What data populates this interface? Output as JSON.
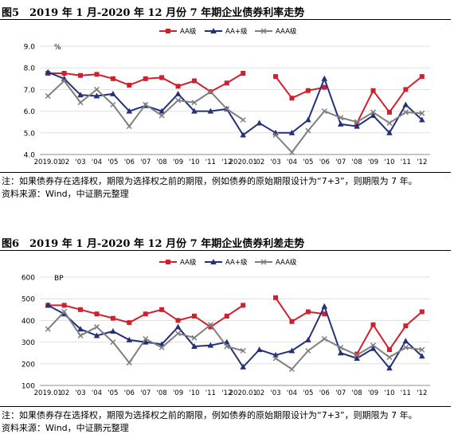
{
  "figure1": {
    "title": "图5　2019 年 1 月-2020 年 12 月份 7 年期企业债券利率走势",
    "note": "注：如果债券存在选择权，期限为选择权之前的期限，例如债券的原始期限设计为“7+3”，则期限为 7 年。",
    "source": "资料来源：Wind，中证鹏元整理"
  },
  "figure2": {
    "title": "图6　2019 年 1 月-2020 年 12 月份 7 年期企业债券利差走势",
    "note": "注：如果债券存在选择权，期限为选择权之前的期限，例如债券的原始期限设计为“7+3”，则期限为 7 年。",
    "source": "资料来源：Wind，中证鹏元整理"
  },
  "chart_data": [
    {
      "type": "line",
      "unit": "%",
      "categories": [
        "2019.01",
        "02",
        "03",
        "04",
        "05",
        "06",
        "07",
        "08",
        "09",
        "10",
        "11",
        "12",
        "2020.01",
        "02",
        "03",
        "04",
        "05",
        "06",
        "07",
        "08",
        "09",
        "10",
        "11",
        "12"
      ],
      "ylim": [
        4.0,
        9.0
      ],
      "yticks": [
        "4.0",
        "5.0",
        "6.0",
        "7.0",
        "8.0",
        "9.0"
      ],
      "grid": true,
      "legend_position": "top",
      "series": [
        {
          "name": "AA级",
          "color": "#d0202e",
          "marker": "square",
          "values": [
            7.75,
            7.75,
            7.65,
            7.7,
            7.5,
            7.2,
            7.5,
            7.55,
            7.15,
            7.4,
            6.9,
            7.3,
            7.75,
            null,
            7.6,
            6.6,
            6.95,
            7.1,
            null,
            5.45,
            6.95,
            5.95,
            7.0,
            7.6
          ]
        },
        {
          "name": "AA+级",
          "color": "#24307a",
          "marker": "triangle",
          "values": [
            7.8,
            7.5,
            6.75,
            6.7,
            6.8,
            6.0,
            6.25,
            6.0,
            6.8,
            6.0,
            6.0,
            6.1,
            4.9,
            5.45,
            5.0,
            5.0,
            5.6,
            7.5,
            5.4,
            5.3,
            5.8,
            5.0,
            6.3,
            5.6
          ]
        },
        {
          "name": "AAA级",
          "color": "#7f7f7f",
          "marker": "x",
          "values": [
            6.7,
            7.4,
            6.4,
            7.0,
            6.3,
            5.3,
            6.3,
            5.8,
            6.5,
            6.4,
            6.9,
            6.1,
            5.6,
            null,
            4.9,
            4.1,
            5.1,
            6.0,
            5.7,
            5.5,
            5.95,
            5.45,
            5.95,
            5.9
          ]
        }
      ]
    },
    {
      "type": "line",
      "unit": "BP",
      "categories": [
        "2019.01",
        "02",
        "03",
        "04",
        "05",
        "06",
        "07",
        "08",
        "09",
        "10",
        "11",
        "12",
        "2020.01",
        "02",
        "03",
        "04",
        "05",
        "06",
        "07",
        "08",
        "09",
        "10",
        "11",
        "12"
      ],
      "ylim": [
        100,
        600
      ],
      "yticks": [
        "100",
        "200",
        "300",
        "400",
        "500",
        "600"
      ],
      "grid": true,
      "legend_position": "top",
      "series": [
        {
          "name": "AA级",
          "color": "#d0202e",
          "marker": "square",
          "values": [
            470,
            470,
            450,
            430,
            410,
            390,
            430,
            450,
            400,
            420,
            370,
            420,
            470,
            null,
            505,
            395,
            440,
            430,
            null,
            245,
            380,
            265,
            375,
            440
          ]
        },
        {
          "name": "AA+级",
          "color": "#24307a",
          "marker": "triangle",
          "values": [
            470,
            430,
            360,
            330,
            350,
            310,
            300,
            290,
            370,
            280,
            285,
            300,
            185,
            265,
            240,
            260,
            310,
            465,
            250,
            225,
            270,
            180,
            305,
            235
          ]
        },
        {
          "name": "AAA级",
          "color": "#7f7f7f",
          "marker": "x",
          "values": [
            360,
            440,
            330,
            370,
            300,
            205,
            315,
            275,
            340,
            320,
            380,
            280,
            260,
            null,
            225,
            175,
            260,
            315,
            275,
            240,
            285,
            230,
            275,
            265
          ]
        }
      ]
    }
  ]
}
